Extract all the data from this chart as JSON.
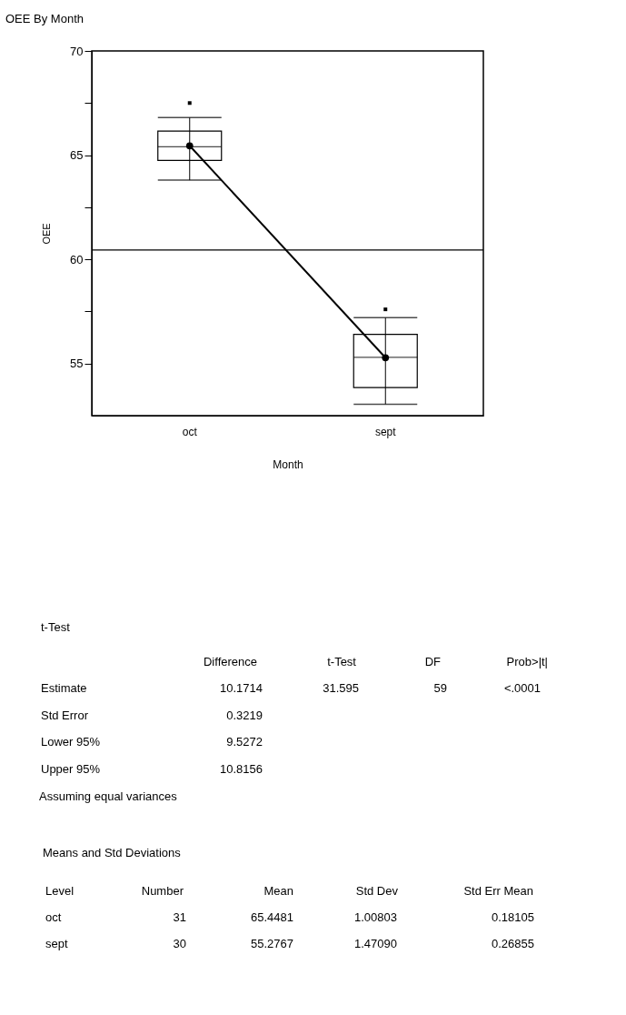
{
  "chart_data": {
    "type": "box",
    "title": "OEE By Month",
    "xlabel": "Month",
    "ylabel": "OEE",
    "categories": [
      "oct",
      "sept"
    ],
    "boxes": [
      {
        "low": 63.8,
        "q1": 64.75,
        "median": 65.4,
        "q3": 66.15,
        "high": 66.8,
        "outliers": [
          67.5
        ]
      },
      {
        "low": 53.05,
        "q1": 53.85,
        "median": 55.3,
        "q3": 56.4,
        "high": 57.2,
        "outliers": [
          57.6
        ]
      }
    ],
    "series": [
      {
        "type": "line",
        "color": "#000000",
        "values": [
          65.45,
          55.28
        ]
      }
    ],
    "marker": "circle",
    "ylim": [
      52.5,
      70
    ],
    "yticks": [
      55,
      {
        "value": 57.5,
        "label": null
      },
      60,
      {
        "value": 62.5,
        "label": null
      },
      65,
      {
        "value": 67.5,
        "label": null
      },
      70
    ],
    "ref_lines": [
      {
        "axis": "y",
        "value": 60.45
      }
    ],
    "grid": false,
    "annotations": [
      "t-Test",
      "Difference",
      "t-Test",
      "DF",
      "Prob>|t|",
      "Estimate",
      "10.1714",
      "31.595",
      "59",
      "<.0001",
      "Std Error",
      "0.3219",
      "Lower 95%",
      "9.5272",
      "Upper 95%",
      "10.8156",
      "Assuming equal variances",
      "Means and Std Deviations",
      "Level",
      "Number",
      "Mean",
      "Std Dev",
      "Std Err Mean",
      "oct",
      "31",
      "65.4481",
      "1.00803",
      "0.18105",
      "sept",
      "30",
      "55.2767",
      "1.47090",
      "0.26855"
    ]
  }
}
